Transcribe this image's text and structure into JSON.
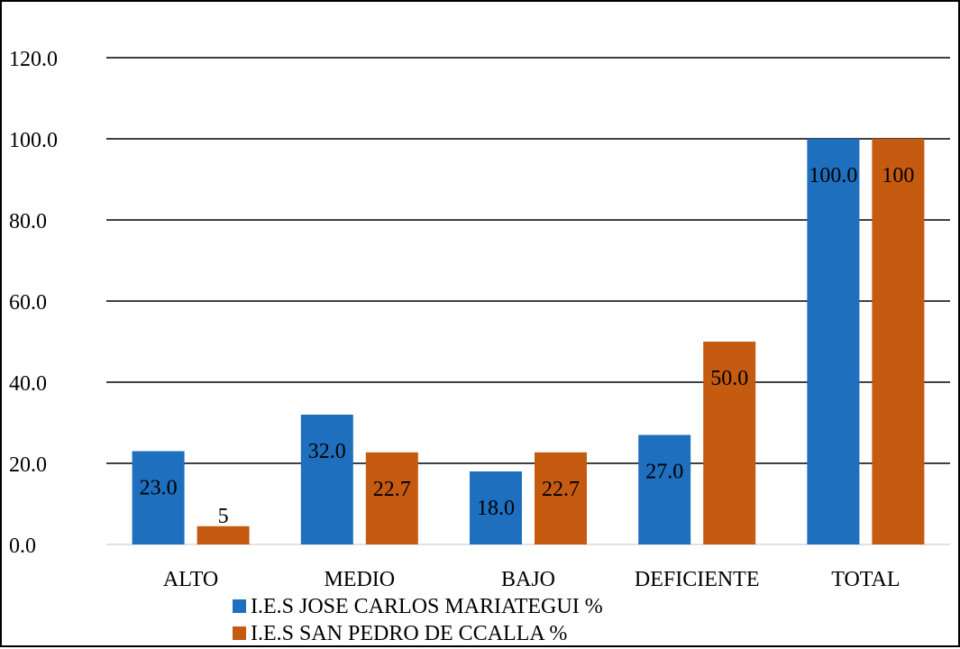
{
  "chart_data": {
    "type": "bar",
    "categories": [
      "ALTO",
      "MEDIO",
      "BAJO",
      "DEFICIENTE",
      "TOTAL"
    ],
    "series": [
      {
        "name": "I.E.S JOSE CARLOS MARIATEGUI %",
        "values": [
          23.0,
          32.0,
          18.0,
          27.0,
          100.0
        ],
        "labels": [
          "23.0",
          "32.0",
          "18.0",
          "27.0",
          "100.0"
        ],
        "color": "#1f6fbf"
      },
      {
        "name": "I.E.S SAN PEDRO DE CCALLA %",
        "values": [
          4.5,
          22.7,
          22.7,
          50.0,
          100.0
        ],
        "labels": [
          "5",
          "22.7",
          "22.7",
          "50.0",
          "100"
        ],
        "color": "#c55a11"
      }
    ],
    "ylim": [
      0,
      120
    ],
    "yticks": [
      "0.0",
      "20.0",
      "40.0",
      "60.0",
      "80.0",
      "100.0",
      "120.0"
    ],
    "ytick_values": [
      0,
      20,
      40,
      60,
      80,
      100,
      120
    ],
    "grid": true,
    "legend_position": "bottom"
  }
}
